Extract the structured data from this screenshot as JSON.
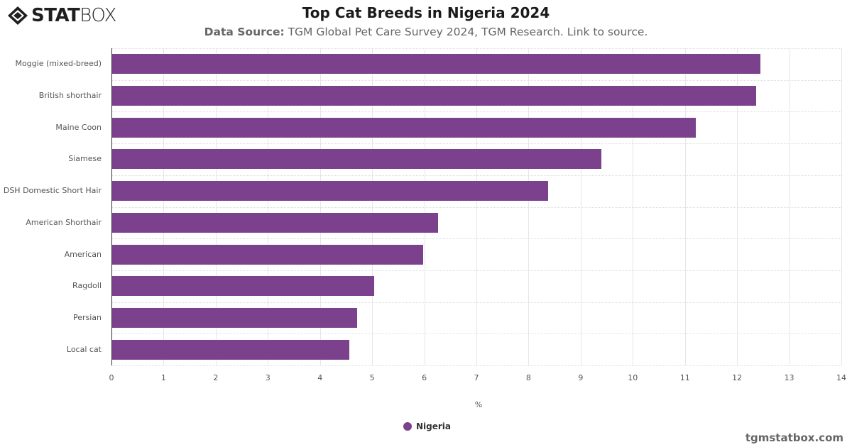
{
  "header": {
    "logo_bold": "STAT",
    "logo_light": "BOX",
    "title": "Top Cat Breeds in Nigeria 2024",
    "source_label": "Data Source:",
    "source_text": " TGM Global Pet Care Survey 2024, TGM Research. Link to source."
  },
  "footer": {
    "site": "tgmstatbox.com"
  },
  "legend": {
    "label": "Nigeria",
    "color": "#7b418c"
  },
  "chart_data": {
    "type": "bar",
    "orientation": "horizontal",
    "title": "Top Cat Breeds in Nigeria 2024",
    "subtitle": "Data Source: TGM Global Pet Care Survey 2024, TGM Research. Link to source.",
    "xlabel": "%",
    "ylabel": "",
    "xlim": [
      0,
      14
    ],
    "xticks": [
      "0",
      "1",
      "2",
      "3",
      "4",
      "5",
      "6",
      "7",
      "8",
      "9",
      "10",
      "11",
      "12",
      "13",
      "14"
    ],
    "grid": true,
    "legend_position": "bottom",
    "categories": [
      "Moggie (mixed-breed)",
      "British shorthair",
      "Maine Coon",
      "Siamese",
      "DSH Domestic Short Hair",
      "American Shorthair",
      "American",
      "Ragdoll",
      "Persian",
      "Local cat"
    ],
    "series": [
      {
        "name": "Nigeria",
        "color": "#7b418c",
        "values": [
          12.43,
          12.35,
          11.2,
          9.38,
          8.36,
          6.25,
          5.97,
          5.03,
          4.7,
          4.55
        ]
      }
    ]
  }
}
